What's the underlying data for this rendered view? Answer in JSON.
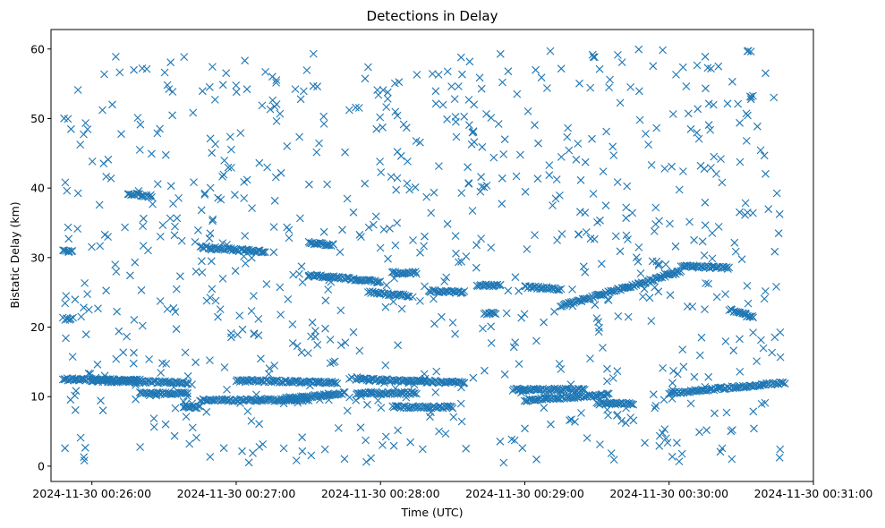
{
  "chart_data": {
    "type": "scatter",
    "title": "Detections in Delay",
    "xlabel": "Time (UTC)",
    "ylabel": "Bistatic Delay (km)",
    "marker": "x",
    "color": "#1f77b4",
    "xlim": [
      "2024-11-30 00:25:43",
      "2024-11-30 00:31:00"
    ],
    "ylim": [
      -2.2,
      62.8
    ],
    "xticks": [
      "2024-11-30 00:26:00",
      "2024-11-30 00:27:00",
      "2024-11-30 00:28:00",
      "2024-11-30 00:29:00",
      "2024-11-30 00:30:00",
      "2024-11-30 00:31:00"
    ],
    "yticks": [
      0,
      10,
      20,
      30,
      40,
      50,
      60
    ],
    "grid": false,
    "legend": "none",
    "time_range": [
      "2024-11-30 00:25:48",
      "2024-11-30 00:30:48"
    ],
    "tracks": [
      {
        "times": [
          "2024-11-30 00:25:48",
          "2024-11-30 00:26:20"
        ],
        "values": [
          12.5,
          12.3
        ]
      },
      {
        "times": [
          "2024-11-30 00:26:00",
          "2024-11-30 00:26:40"
        ],
        "values": [
          12.3,
          12.0
        ]
      },
      {
        "times": [
          "2024-11-30 00:26:20",
          "2024-11-30 00:26:40"
        ],
        "values": [
          10.5,
          10.5
        ]
      },
      {
        "times": [
          "2024-11-30 00:26:38",
          "2024-11-30 00:26:45"
        ],
        "values": [
          8.5,
          8.5
        ]
      },
      {
        "times": [
          "2024-11-30 00:26:45",
          "2024-11-30 00:27:30"
        ],
        "values": [
          9.5,
          9.5
        ]
      },
      {
        "times": [
          "2024-11-30 00:27:00",
          "2024-11-30 00:27:42"
        ],
        "values": [
          12.3,
          12.0
        ]
      },
      {
        "times": [
          "2024-11-30 00:27:20",
          "2024-11-30 00:27:45"
        ],
        "values": [
          9.7,
          10.5
        ]
      },
      {
        "times": [
          "2024-11-30 00:27:50",
          "2024-11-30 00:28:35"
        ],
        "values": [
          12.5,
          12.0
        ]
      },
      {
        "times": [
          "2024-11-30 00:27:50",
          "2024-11-30 00:28:15"
        ],
        "values": [
          10.5,
          10.5
        ]
      },
      {
        "times": [
          "2024-11-30 00:28:05",
          "2024-11-30 00:28:30"
        ],
        "values": [
          8.5,
          8.5
        ]
      },
      {
        "times": [
          "2024-11-30 00:28:55",
          "2024-11-30 00:29:25"
        ],
        "values": [
          11.0,
          11.0
        ]
      },
      {
        "times": [
          "2024-11-30 00:29:00",
          "2024-11-30 00:29:35"
        ],
        "values": [
          9.5,
          10.3
        ]
      },
      {
        "times": [
          "2024-11-30 00:29:30",
          "2024-11-30 00:29:45"
        ],
        "values": [
          9.0,
          9.0
        ]
      },
      {
        "times": [
          "2024-11-30 00:30:00",
          "2024-11-30 00:30:48"
        ],
        "values": [
          10.5,
          12.0
        ]
      },
      {
        "times": [
          "2024-11-30 00:25:48",
          "2024-11-30 00:25:52"
        ],
        "values": [
          21.2,
          21.2
        ]
      },
      {
        "times": [
          "2024-11-30 00:25:48",
          "2024-11-30 00:25:52"
        ],
        "values": [
          31.0,
          31.0
        ]
      },
      {
        "times": [
          "2024-11-30 00:26:15",
          "2024-11-30 00:26:25"
        ],
        "values": [
          39.2,
          38.8
        ]
      },
      {
        "times": [
          "2024-11-30 00:26:45",
          "2024-11-30 00:27:12"
        ],
        "values": [
          31.5,
          30.8
        ]
      },
      {
        "times": [
          "2024-11-30 00:27:30",
          "2024-11-30 00:27:40"
        ],
        "values": [
          32.2,
          31.8
        ]
      },
      {
        "times": [
          "2024-11-30 00:27:30",
          "2024-11-30 00:28:00"
        ],
        "values": [
          27.5,
          26.5
        ]
      },
      {
        "times": [
          "2024-11-30 00:27:55",
          "2024-11-30 00:28:12"
        ],
        "values": [
          25.0,
          24.5
        ]
      },
      {
        "times": [
          "2024-11-30 00:28:05",
          "2024-11-30 00:28:15"
        ],
        "values": [
          27.8,
          27.8
        ]
      },
      {
        "times": [
          "2024-11-30 00:28:20",
          "2024-11-30 00:28:35"
        ],
        "values": [
          25.2,
          25.0
        ]
      },
      {
        "times": [
          "2024-11-30 00:28:40",
          "2024-11-30 00:28:50"
        ],
        "values": [
          26.0,
          26.0
        ]
      },
      {
        "times": [
          "2024-11-30 00:28:43",
          "2024-11-30 00:28:48"
        ],
        "values": [
          22.0,
          22.0
        ]
      },
      {
        "times": [
          "2024-11-30 00:29:00",
          "2024-11-30 00:29:15"
        ],
        "values": [
          25.8,
          25.5
        ]
      },
      {
        "times": [
          "2024-11-30 00:29:15",
          "2024-11-30 00:30:05"
        ],
        "values": [
          23.0,
          28.0
        ]
      },
      {
        "times": [
          "2024-11-30 00:30:05",
          "2024-11-30 00:30:25"
        ],
        "values": [
          28.8,
          28.5
        ]
      },
      {
        "times": [
          "2024-11-30 00:30:25",
          "2024-11-30 00:30:35"
        ],
        "values": [
          22.5,
          21.5
        ]
      }
    ]
  }
}
